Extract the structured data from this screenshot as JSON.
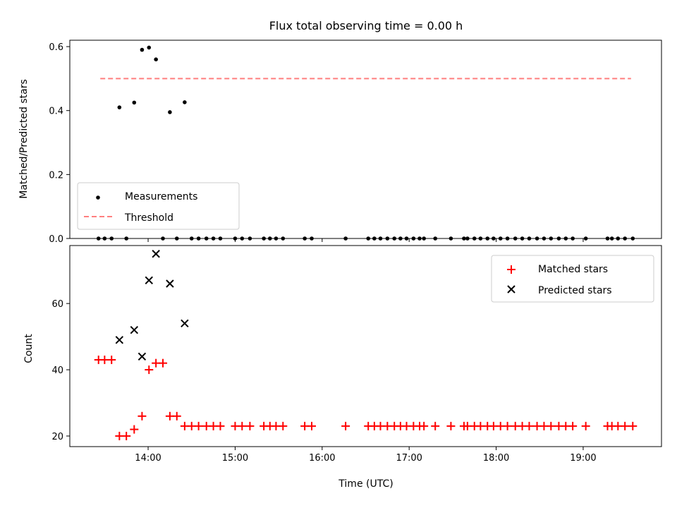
{
  "chart_data": [
    {
      "type": "scatter",
      "title": "Flux total observing time = 0.00 h",
      "xlabel": "",
      "ylabel": "Matched/Predicted stars",
      "xlim": [
        13.1,
        19.9
      ],
      "ylim": [
        0.0,
        0.62
      ],
      "xticks": [
        14,
        15,
        16,
        17,
        18,
        19
      ],
      "yticks": [
        0.0,
        0.2,
        0.4,
        0.6
      ],
      "ytick_labels": [
        "0.0",
        "0.2",
        "0.4",
        "0.6"
      ],
      "legend": {
        "position": "lower-left",
        "entries": [
          "Measurements",
          "Threshold"
        ]
      },
      "threshold": {
        "name": "Threshold",
        "value": 0.5,
        "x_range": [
          13.45,
          19.55
        ],
        "color": "#ff7f7f"
      },
      "series": [
        {
          "name": "Measurements",
          "color": "#000000",
          "x": [
            13.67,
            13.84,
            13.93,
            14.01,
            14.09,
            14.25,
            14.42,
            13.43,
            13.5,
            13.58,
            13.75,
            14.17,
            14.33,
            14.5,
            14.58,
            14.67,
            14.75,
            14.83,
            15.0,
            15.08,
            15.17,
            15.33,
            15.4,
            15.47,
            15.55,
            15.8,
            15.88,
            16.27,
            16.53,
            16.6,
            16.67,
            16.75,
            16.83,
            16.9,
            16.97,
            17.05,
            17.12,
            17.17,
            17.3,
            17.48,
            17.63,
            17.67,
            17.75,
            17.82,
            17.9,
            17.97,
            18.05,
            18.13,
            18.22,
            18.3,
            18.38,
            18.47,
            18.55,
            18.63,
            18.72,
            18.8,
            18.88,
            19.03,
            19.28,
            19.33,
            19.4,
            19.48,
            19.57
          ],
          "y": [
            0.41,
            0.425,
            0.59,
            0.597,
            0.56,
            0.395,
            0.426,
            0,
            0,
            0,
            0,
            0,
            0,
            0,
            0,
            0,
            0,
            0,
            0,
            0,
            0,
            0,
            0,
            0,
            0,
            0,
            0,
            0,
            0,
            0,
            0,
            0,
            0,
            0,
            0,
            0,
            0,
            0,
            0,
            0,
            0,
            0,
            0,
            0,
            0,
            0,
            0,
            0,
            0,
            0,
            0,
            0,
            0,
            0,
            0,
            0,
            0,
            0,
            0,
            0,
            0,
            0,
            0
          ]
        }
      ]
    },
    {
      "type": "scatter",
      "title": "",
      "xlabel": "Time (UTC)",
      "ylabel": "Count",
      "xlim": [
        13.1,
        19.9
      ],
      "ylim": [
        16.8,
        77.5
      ],
      "xticks": [
        14,
        15,
        16,
        17,
        18,
        19
      ],
      "xtick_labels": [
        "14:00",
        "15:00",
        "16:00",
        "17:00",
        "18:00",
        "19:00"
      ],
      "yticks": [
        20,
        40,
        60
      ],
      "ytick_labels": [
        "20",
        "40",
        "60"
      ],
      "legend": {
        "position": "upper-right",
        "entries": [
          "Matched stars",
          "Predicted stars"
        ]
      },
      "series": [
        {
          "name": "Matched stars",
          "marker": "+",
          "color": "#ff0000",
          "x": [
            13.43,
            13.5,
            13.58,
            13.67,
            13.75,
            13.84,
            13.93,
            14.01,
            14.09,
            14.17,
            14.25,
            14.33,
            14.42,
            14.5,
            14.58,
            14.67,
            14.75,
            14.83,
            15.0,
            15.08,
            15.17,
            15.33,
            15.4,
            15.47,
            15.55,
            15.8,
            15.88,
            16.27,
            16.53,
            16.6,
            16.67,
            16.75,
            16.83,
            16.9,
            16.97,
            17.05,
            17.12,
            17.17,
            17.3,
            17.48,
            17.63,
            17.67,
            17.75,
            17.82,
            17.9,
            17.97,
            18.05,
            18.13,
            18.22,
            18.3,
            18.38,
            18.47,
            18.55,
            18.63,
            18.72,
            18.8,
            18.88,
            19.03,
            19.28,
            19.33,
            19.4,
            19.48,
            19.57
          ],
          "y": [
            43,
            43,
            43,
            20,
            20,
            22,
            26,
            40,
            42,
            42,
            26,
            26,
            23,
            23,
            23,
            23,
            23,
            23,
            23,
            23,
            23,
            23,
            23,
            23,
            23,
            23,
            23,
            23,
            23,
            23,
            23,
            23,
            23,
            23,
            23,
            23,
            23,
            23,
            23,
            23,
            23,
            23,
            23,
            23,
            23,
            23,
            23,
            23,
            23,
            23,
            23,
            23,
            23,
            23,
            23,
            23,
            23,
            23,
            23,
            23,
            23,
            23,
            23
          ]
        },
        {
          "name": "Predicted stars",
          "marker": "x",
          "color": "#000000",
          "x": [
            13.67,
            13.84,
            13.93,
            14.01,
            14.09,
            14.25,
            14.42
          ],
          "y": [
            49,
            52,
            44,
            67,
            75,
            66,
            54
          ]
        }
      ]
    }
  ]
}
